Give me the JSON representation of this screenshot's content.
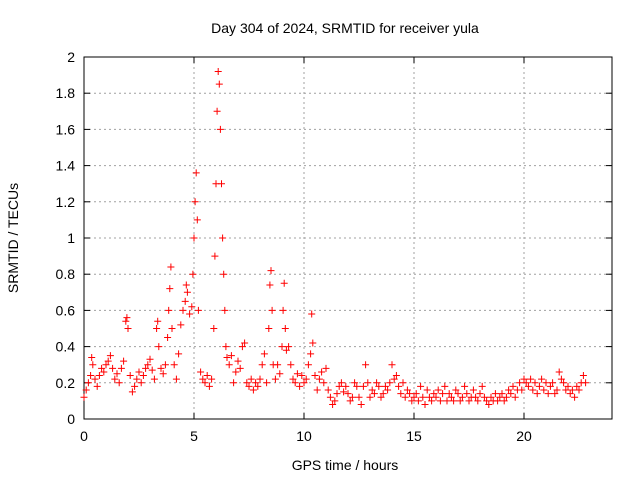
{
  "chart_data": {
    "type": "scatter",
    "title": "Day 304 of 2024, SRMTID for receiver yula",
    "xlabel": "GPS time / hours",
    "ylabel": "SRMTID / TECUs",
    "xlim": [
      0,
      24
    ],
    "ylim": [
      0,
      2
    ],
    "xticks": [
      0,
      5,
      10,
      15,
      20
    ],
    "yticks": [
      0,
      0.2,
      0.4,
      0.6,
      0.8,
      1,
      1.2,
      1.4,
      1.6,
      1.8,
      2
    ],
    "grid": true,
    "marker": "+",
    "color": "#ff0000",
    "series": [
      {
        "name": "SRMTID",
        "points": [
          [
            0.0,
            0.12
          ],
          [
            0.1,
            0.16
          ],
          [
            0.2,
            0.2
          ],
          [
            0.3,
            0.24
          ],
          [
            0.35,
            0.34
          ],
          [
            0.4,
            0.3
          ],
          [
            0.5,
            0.22
          ],
          [
            0.6,
            0.18
          ],
          [
            0.7,
            0.24
          ],
          [
            0.8,
            0.28
          ],
          [
            0.9,
            0.26
          ],
          [
            1.0,
            0.3
          ],
          [
            1.1,
            0.32
          ],
          [
            1.2,
            0.35
          ],
          [
            1.3,
            0.28
          ],
          [
            1.4,
            0.22
          ],
          [
            1.5,
            0.25
          ],
          [
            1.6,
            0.2
          ],
          [
            1.7,
            0.28
          ],
          [
            1.8,
            0.32
          ],
          [
            1.9,
            0.54
          ],
          [
            1.95,
            0.56
          ],
          [
            2.0,
            0.5
          ],
          [
            2.1,
            0.24
          ],
          [
            2.2,
            0.15
          ],
          [
            2.3,
            0.18
          ],
          [
            2.4,
            0.22
          ],
          [
            2.5,
            0.26
          ],
          [
            2.6,
            0.2
          ],
          [
            2.7,
            0.24
          ],
          [
            2.8,
            0.28
          ],
          [
            2.9,
            0.3
          ],
          [
            3.0,
            0.33
          ],
          [
            3.1,
            0.27
          ],
          [
            3.2,
            0.22
          ],
          [
            3.3,
            0.5
          ],
          [
            3.35,
            0.54
          ],
          [
            3.4,
            0.4
          ],
          [
            3.5,
            0.28
          ],
          [
            3.6,
            0.25
          ],
          [
            3.7,
            0.3
          ],
          [
            3.8,
            0.45
          ],
          [
            3.85,
            0.6
          ],
          [
            3.9,
            0.72
          ],
          [
            3.95,
            0.84
          ],
          [
            4.0,
            0.5
          ],
          [
            4.1,
            0.3
          ],
          [
            4.2,
            0.22
          ],
          [
            4.3,
            0.36
          ],
          [
            4.4,
            0.52
          ],
          [
            4.5,
            0.6
          ],
          [
            4.6,
            0.65
          ],
          [
            4.65,
            0.74
          ],
          [
            4.7,
            0.7
          ],
          [
            4.8,
            0.58
          ],
          [
            4.9,
            0.62
          ],
          [
            4.95,
            0.8
          ],
          [
            5.0,
            1.0
          ],
          [
            5.05,
            1.2
          ],
          [
            5.1,
            1.36
          ],
          [
            5.15,
            1.1
          ],
          [
            5.2,
            0.6
          ],
          [
            5.3,
            0.26
          ],
          [
            5.4,
            0.22
          ],
          [
            5.5,
            0.2
          ],
          [
            5.6,
            0.24
          ],
          [
            5.7,
            0.18
          ],
          [
            5.8,
            0.22
          ],
          [
            5.9,
            0.5
          ],
          [
            5.95,
            0.9
          ],
          [
            6.0,
            1.3
          ],
          [
            6.05,
            1.7
          ],
          [
            6.1,
            1.92
          ],
          [
            6.15,
            1.85
          ],
          [
            6.2,
            1.6
          ],
          [
            6.25,
            1.3
          ],
          [
            6.3,
            1.0
          ],
          [
            6.35,
            0.8
          ],
          [
            6.4,
            0.6
          ],
          [
            6.45,
            0.4
          ],
          [
            6.5,
            0.34
          ],
          [
            6.6,
            0.3
          ],
          [
            6.7,
            0.35
          ],
          [
            6.8,
            0.2
          ],
          [
            6.9,
            0.26
          ],
          [
            7.0,
            0.32
          ],
          [
            7.1,
            0.28
          ],
          [
            7.2,
            0.4
          ],
          [
            7.3,
            0.42
          ],
          [
            7.4,
            0.2
          ],
          [
            7.5,
            0.18
          ],
          [
            7.6,
            0.22
          ],
          [
            7.7,
            0.16
          ],
          [
            7.8,
            0.2
          ],
          [
            7.9,
            0.18
          ],
          [
            8.0,
            0.22
          ],
          [
            8.1,
            0.3
          ],
          [
            8.2,
            0.36
          ],
          [
            8.3,
            0.2
          ],
          [
            8.4,
            0.5
          ],
          [
            8.45,
            0.74
          ],
          [
            8.5,
            0.82
          ],
          [
            8.55,
            0.6
          ],
          [
            8.6,
            0.3
          ],
          [
            8.7,
            0.22
          ],
          [
            8.8,
            0.3
          ],
          [
            8.9,
            0.25
          ],
          [
            9.0,
            0.4
          ],
          [
            9.05,
            0.6
          ],
          [
            9.1,
            0.75
          ],
          [
            9.15,
            0.5
          ],
          [
            9.2,
            0.38
          ],
          [
            9.3,
            0.4
          ],
          [
            9.4,
            0.3
          ],
          [
            9.5,
            0.22
          ],
          [
            9.6,
            0.2
          ],
          [
            9.7,
            0.25
          ],
          [
            9.8,
            0.18
          ],
          [
            9.9,
            0.24
          ],
          [
            10.0,
            0.2
          ],
          [
            10.1,
            0.22
          ],
          [
            10.2,
            0.3
          ],
          [
            10.3,
            0.36
          ],
          [
            10.35,
            0.58
          ],
          [
            10.4,
            0.42
          ],
          [
            10.5,
            0.24
          ],
          [
            10.6,
            0.16
          ],
          [
            10.7,
            0.22
          ],
          [
            10.8,
            0.26
          ],
          [
            10.9,
            0.2
          ],
          [
            11.0,
            0.28
          ],
          [
            11.1,
            0.16
          ],
          [
            11.2,
            0.12
          ],
          [
            11.3,
            0.08
          ],
          [
            11.4,
            0.1
          ],
          [
            11.5,
            0.14
          ],
          [
            11.6,
            0.18
          ],
          [
            11.7,
            0.2
          ],
          [
            11.8,
            0.15
          ],
          [
            11.9,
            0.18
          ],
          [
            12.0,
            0.14
          ],
          [
            12.1,
            0.1
          ],
          [
            12.2,
            0.12
          ],
          [
            12.3,
            0.2
          ],
          [
            12.4,
            0.18
          ],
          [
            12.5,
            0.12
          ],
          [
            12.6,
            0.08
          ],
          [
            12.7,
            0.18
          ],
          [
            12.8,
            0.3
          ],
          [
            12.9,
            0.2
          ],
          [
            13.0,
            0.12
          ],
          [
            13.1,
            0.16
          ],
          [
            13.2,
            0.14
          ],
          [
            13.3,
            0.2
          ],
          [
            13.4,
            0.18
          ],
          [
            13.5,
            0.12
          ],
          [
            13.6,
            0.14
          ],
          [
            13.7,
            0.18
          ],
          [
            13.8,
            0.16
          ],
          [
            13.9,
            0.2
          ],
          [
            14.0,
            0.3
          ],
          [
            14.1,
            0.22
          ],
          [
            14.2,
            0.24
          ],
          [
            14.3,
            0.18
          ],
          [
            14.4,
            0.14
          ],
          [
            14.5,
            0.2
          ],
          [
            14.6,
            0.12
          ],
          [
            14.7,
            0.16
          ],
          [
            14.8,
            0.14
          ],
          [
            14.9,
            0.1
          ],
          [
            15.0,
            0.12
          ],
          [
            15.1,
            0.14
          ],
          [
            15.2,
            0.1
          ],
          [
            15.3,
            0.18
          ],
          [
            15.4,
            0.12
          ],
          [
            15.5,
            0.08
          ],
          [
            15.6,
            0.16
          ],
          [
            15.7,
            0.12
          ],
          [
            15.8,
            0.1
          ],
          [
            15.9,
            0.14
          ],
          [
            16.0,
            0.12
          ],
          [
            16.1,
            0.16
          ],
          [
            16.2,
            0.1
          ],
          [
            16.3,
            0.14
          ],
          [
            16.4,
            0.18
          ],
          [
            16.5,
            0.1
          ],
          [
            16.6,
            0.14
          ],
          [
            16.7,
            0.12
          ],
          [
            16.8,
            0.1
          ],
          [
            16.9,
            0.16
          ],
          [
            17.0,
            0.14
          ],
          [
            17.1,
            0.1
          ],
          [
            17.2,
            0.12
          ],
          [
            17.3,
            0.18
          ],
          [
            17.4,
            0.14
          ],
          [
            17.5,
            0.1
          ],
          [
            17.6,
            0.12
          ],
          [
            17.7,
            0.16
          ],
          [
            17.8,
            0.12
          ],
          [
            17.9,
            0.1
          ],
          [
            18.0,
            0.14
          ],
          [
            18.1,
            0.18
          ],
          [
            18.2,
            0.12
          ],
          [
            18.3,
            0.1
          ],
          [
            18.4,
            0.08
          ],
          [
            18.5,
            0.12
          ],
          [
            18.6,
            0.1
          ],
          [
            18.7,
            0.14
          ],
          [
            18.8,
            0.1
          ],
          [
            18.9,
            0.12
          ],
          [
            19.0,
            0.14
          ],
          [
            19.1,
            0.1
          ],
          [
            19.2,
            0.12
          ],
          [
            19.3,
            0.16
          ],
          [
            19.4,
            0.14
          ],
          [
            19.5,
            0.18
          ],
          [
            19.6,
            0.12
          ],
          [
            19.7,
            0.16
          ],
          [
            19.8,
            0.2
          ],
          [
            19.9,
            0.16
          ],
          [
            20.0,
            0.22
          ],
          [
            20.1,
            0.2
          ],
          [
            20.2,
            0.18
          ],
          [
            20.3,
            0.22
          ],
          [
            20.4,
            0.16
          ],
          [
            20.5,
            0.2
          ],
          [
            20.6,
            0.14
          ],
          [
            20.7,
            0.18
          ],
          [
            20.8,
            0.22
          ],
          [
            20.9,
            0.16
          ],
          [
            21.0,
            0.2
          ],
          [
            21.1,
            0.14
          ],
          [
            21.2,
            0.18
          ],
          [
            21.3,
            0.2
          ],
          [
            21.4,
            0.14
          ],
          [
            21.5,
            0.16
          ],
          [
            21.6,
            0.26
          ],
          [
            21.7,
            0.22
          ],
          [
            21.8,
            0.2
          ],
          [
            21.9,
            0.16
          ],
          [
            22.0,
            0.18
          ],
          [
            22.1,
            0.14
          ],
          [
            22.2,
            0.16
          ],
          [
            22.3,
            0.12
          ],
          [
            22.4,
            0.18
          ],
          [
            22.5,
            0.16
          ],
          [
            22.6,
            0.2
          ],
          [
            22.7,
            0.24
          ],
          [
            22.8,
            0.2
          ]
        ]
      }
    ]
  }
}
